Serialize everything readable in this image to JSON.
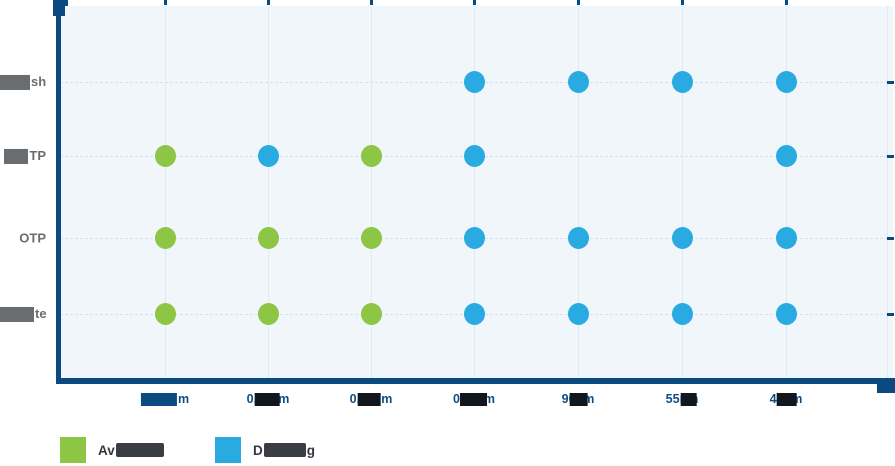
{
  "chart_data": {
    "type": "scatter",
    "description": "Availability matrix of memory IP types (rows) across process nodes (columns); green dot = available, blue dot = developing",
    "x_labels": [
      {
        "visible": "m",
        "redacted": true
      },
      {
        "visible": "0.18µm",
        "redacted": true
      },
      {
        "visible": "0.15µm",
        "redacted": true
      },
      {
        "visible": "0.11µm",
        "redacted": true
      },
      {
        "visible": "90nm",
        "redacted": true
      },
      {
        "visible": "55nm",
        "redacted": true
      },
      {
        "visible": "40nm",
        "redacted": true
      }
    ],
    "y_labels": [
      {
        "visible": "sh",
        "redacted": true
      },
      {
        "visible": "TP",
        "redacted": true
      },
      {
        "visible": "OTP",
        "redacted": false
      },
      {
        "visible": "te",
        "redacted": true
      }
    ],
    "matrix": [
      [
        null,
        null,
        null,
        "developing",
        "developing",
        "developing",
        "developing"
      ],
      [
        "available",
        "developing",
        "available",
        "developing",
        null,
        null,
        "developing"
      ],
      [
        "available",
        "available",
        "available",
        "developing",
        "developing",
        "developing",
        "developing"
      ],
      [
        "available",
        "available",
        "available",
        "developing",
        "developing",
        "developing",
        "developing"
      ]
    ],
    "status_colors": {
      "available": "#8cc644",
      "developing": "#29abe2"
    },
    "legend": [
      {
        "prefix": "Av",
        "suffix": "",
        "redacted": true,
        "color": "#8cc644"
      },
      {
        "prefix": "D",
        "suffix": "g",
        "redacted": true,
        "color": "#29abe2"
      }
    ],
    "grid": true,
    "legend_position": "bottom-left"
  },
  "colors": {
    "axis": "#0b4a7e",
    "plot_background": "#f1f6fb",
    "vertical_grid": "#e0e8f0",
    "horizontal_grid": "#d2e2f2",
    "x_label_text": "#0d4e87",
    "y_label_text": "#6a6d70",
    "legend_text": "#34383e"
  }
}
